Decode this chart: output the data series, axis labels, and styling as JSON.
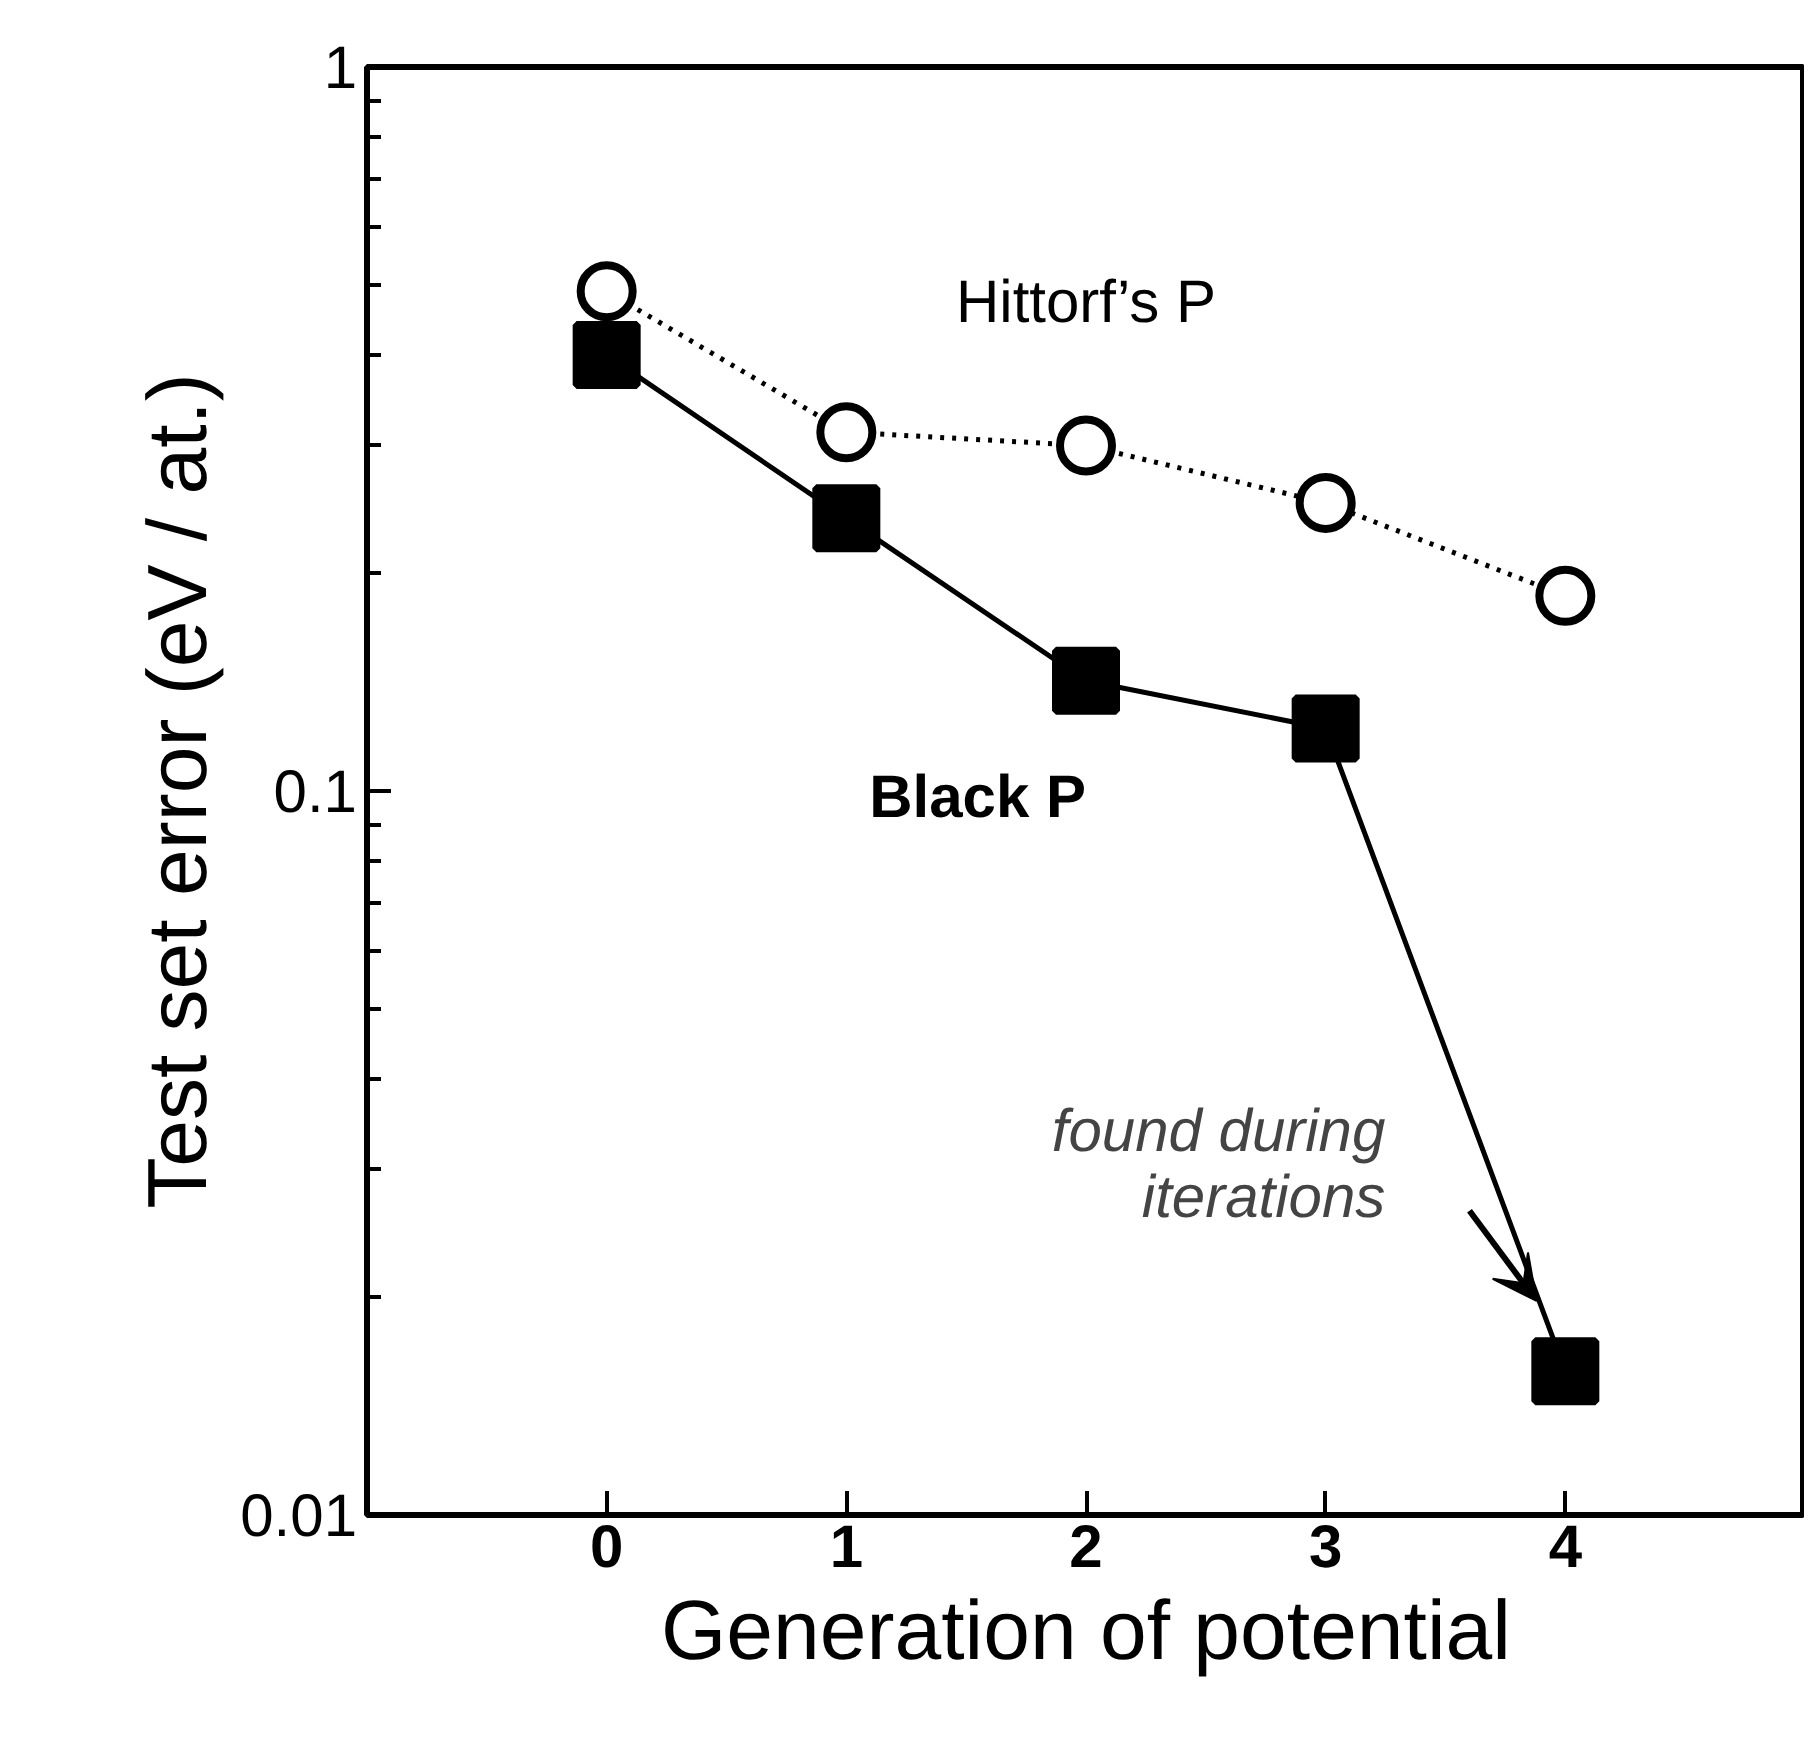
{
  "chart_data": {
    "type": "line",
    "xlabel": "Generation of potential",
    "ylabel": "Test set error (eV / at.)",
    "x": [
      0,
      1,
      2,
      3,
      4
    ],
    "series": [
      {
        "name": "Hittorf’s P",
        "color": "#000000",
        "marker": "circle",
        "line_style": "dotted",
        "values": [
          0.49,
          0.313,
          0.3,
          0.25,
          0.186
        ]
      },
      {
        "name": "Black P",
        "color": "#000000",
        "marker": "square",
        "line_style": "solid",
        "values": [
          0.4,
          0.238,
          0.142,
          0.122,
          0.0158
        ]
      }
    ],
    "annotations": [
      "found during\niterations"
    ],
    "xlim": [
      -1,
      5
    ],
    "ylim": [
      0.01,
      1
    ],
    "xticks": [
      0,
      1,
      2,
      3,
      4
    ],
    "yticks": [
      0.01,
      0.1,
      1
    ],
    "log": "y",
    "grid": false,
    "legend": false
  }
}
